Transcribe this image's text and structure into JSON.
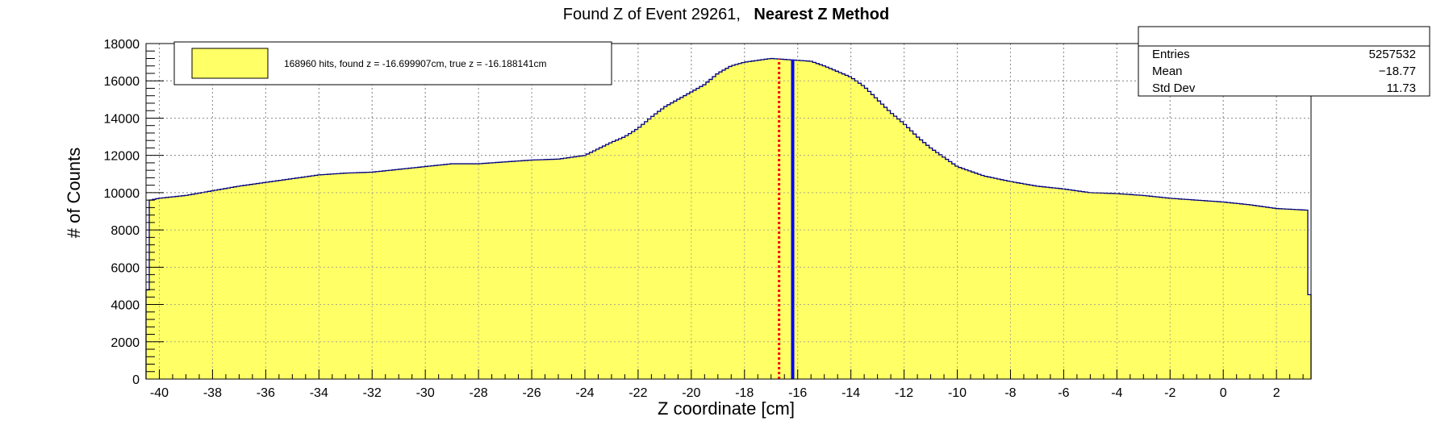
{
  "chart_data": {
    "type": "histogram",
    "title": "Found Z of Event 29261,",
    "title_bold": "Nearest Z Method",
    "xlabel": "Z coordinate [cm]",
    "ylabel": "# of Counts",
    "xlim": [
      -40.5,
      3.3
    ],
    "ylim": [
      0,
      18000
    ],
    "x_ticks": [
      -40,
      -38,
      -36,
      -34,
      -32,
      -30,
      -28,
      -26,
      -24,
      -22,
      -20,
      -18,
      -16,
      -14,
      -12,
      -10,
      -8,
      -6,
      -4,
      -2,
      0,
      2
    ],
    "y_ticks": [
      0,
      2000,
      4000,
      6000,
      8000,
      10000,
      12000,
      14000,
      16000,
      18000
    ],
    "grid": true,
    "fill_color": "#ffff66",
    "line_color": "#000080",
    "curve": {
      "x": [
        -40.5,
        -40,
        -39,
        -38,
        -37,
        -36,
        -35,
        -34,
        -33,
        -32,
        -31,
        -30,
        -29,
        -28,
        -27,
        -26,
        -25,
        -24,
        -23.5,
        -23,
        -22.5,
        -22,
        -21.5,
        -21,
        -20.5,
        -20,
        -19.5,
        -19,
        -18.5,
        -18,
        -17.5,
        -17,
        -16.5,
        -16,
        -15.5,
        -15,
        -14.5,
        -14,
        -13.5,
        -13,
        -12.5,
        -12,
        -11.5,
        -11,
        -10.5,
        -10,
        -9,
        -8,
        -7,
        -6,
        -5,
        -4,
        -3,
        -2,
        -1,
        0,
        1,
        2,
        3.3
      ],
      "y": [
        9550,
        9700,
        9850,
        10100,
        10350,
        10550,
        10750,
        10950,
        11050,
        11100,
        11250,
        11400,
        11550,
        11550,
        11650,
        11750,
        11800,
        12000,
        12350,
        12700,
        13000,
        13450,
        14050,
        14600,
        15000,
        15400,
        15800,
        16400,
        16800,
        17000,
        17100,
        17200,
        17150,
        17100,
        17050,
        16800,
        16500,
        16200,
        15700,
        15000,
        14300,
        13700,
        13000,
        12400,
        11900,
        11400,
        10900,
        10600,
        10350,
        10200,
        10000,
        9950,
        9850,
        9700,
        9600,
        9500,
        9350,
        9150,
        9050
      ]
    },
    "found_z": -16.699907,
    "true_z": -16.188141,
    "found_color": "#ff0000",
    "true_color": "#0000ff",
    "legend": {
      "text": "168960 hits, found z = -16.699907cm, true z = -16.188141cm",
      "swatch_color": "#ffff66"
    },
    "stats": {
      "rows": [
        {
          "label": "Entries",
          "value": "5257532"
        },
        {
          "label": "Mean",
          "value": "−18.77"
        },
        {
          "label": "Std Dev",
          "value": "11.73"
        }
      ]
    }
  }
}
